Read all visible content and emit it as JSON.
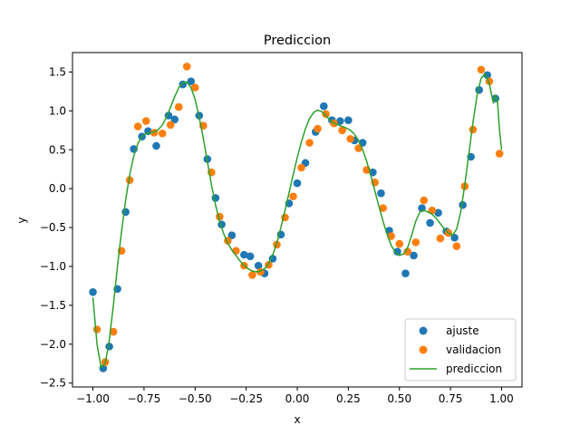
{
  "chart_data": {
    "type": "scatter",
    "title": "Prediccion",
    "xlabel": "x",
    "ylabel": "y",
    "xlim": [
      -1.1,
      1.1
    ],
    "ylim": [
      -2.55,
      1.75
    ],
    "xticks": [
      -1.0,
      -0.75,
      -0.5,
      -0.25,
      0.0,
      0.25,
      0.5,
      0.75,
      1.0
    ],
    "xtick_labels": [
      "−1.00",
      "−0.75",
      "−0.50",
      "−0.25",
      "0.00",
      "0.25",
      "0.50",
      "0.75",
      "1.00"
    ],
    "yticks": [
      -2.5,
      -2.0,
      -1.5,
      -1.0,
      -0.5,
      0.0,
      0.5,
      1.0,
      1.5
    ],
    "ytick_labels": [
      "−2.5",
      "−2.0",
      "−1.5",
      "−1.0",
      "−0.5",
      "0.0",
      "0.5",
      "1.0",
      "1.5"
    ],
    "grid": false,
    "legend_position": "lower-right",
    "series": [
      {
        "name": "ajuste",
        "kind": "scatter",
        "color": "#1f77b4",
        "x": [
          -1.0,
          -0.95,
          -0.92,
          -0.88,
          -0.84,
          -0.8,
          -0.76,
          -0.73,
          -0.69,
          -0.63,
          -0.6,
          -0.56,
          -0.52,
          -0.48,
          -0.44,
          -0.4,
          -0.37,
          -0.32,
          -0.26,
          -0.23,
          -0.19,
          -0.16,
          -0.12,
          -0.08,
          -0.04,
          0.0,
          0.04,
          0.09,
          0.13,
          0.17,
          0.21,
          0.25,
          0.28,
          0.32,
          0.37,
          0.41,
          0.45,
          0.49,
          0.53,
          0.57,
          0.61,
          0.65,
          0.69,
          0.73,
          0.77,
          0.81,
          0.85,
          0.89,
          0.93,
          0.97
        ],
        "y": [
          -1.33,
          -2.31,
          -2.03,
          -1.29,
          -0.3,
          0.51,
          0.67,
          0.74,
          0.55,
          0.94,
          0.89,
          1.34,
          1.38,
          0.94,
          0.38,
          -0.12,
          -0.46,
          -0.6,
          -0.85,
          -0.87,
          -0.99,
          -1.09,
          -0.9,
          -0.59,
          -0.19,
          0.07,
          0.33,
          0.73,
          1.06,
          0.88,
          0.87,
          0.88,
          0.62,
          0.59,
          0.21,
          -0.06,
          -0.54,
          -0.81,
          -1.09,
          -0.86,
          -0.25,
          -0.44,
          -0.31,
          -0.55,
          -0.63,
          -0.21,
          0.41,
          1.27,
          1.46,
          1.16
        ]
      },
      {
        "name": "validacion",
        "kind": "scatter",
        "color": "#ff7f0e",
        "x": [
          -0.98,
          -0.94,
          -0.9,
          -0.86,
          -0.82,
          -0.78,
          -0.74,
          -0.7,
          -0.66,
          -0.62,
          -0.58,
          -0.54,
          -0.5,
          -0.46,
          -0.42,
          -0.38,
          -0.34,
          -0.3,
          -0.26,
          -0.22,
          -0.18,
          -0.14,
          -0.1,
          -0.06,
          -0.02,
          0.02,
          0.06,
          0.1,
          0.14,
          0.18,
          0.22,
          0.26,
          0.3,
          0.34,
          0.38,
          0.42,
          0.46,
          0.5,
          0.54,
          0.58,
          0.62,
          0.66,
          0.7,
          0.74,
          0.78,
          0.82,
          0.86,
          0.9,
          0.94,
          0.99
        ],
        "y": [
          -1.81,
          -2.23,
          -1.84,
          -0.8,
          0.11,
          0.8,
          0.87,
          0.72,
          0.71,
          0.82,
          1.05,
          1.57,
          1.3,
          0.81,
          0.21,
          -0.36,
          -0.67,
          -0.8,
          -0.99,
          -1.11,
          -1.07,
          -0.98,
          -0.72,
          -0.37,
          -0.1,
          0.27,
          0.59,
          0.77,
          0.96,
          0.84,
          0.75,
          0.64,
          0.52,
          0.24,
          0.08,
          -0.25,
          -0.61,
          -0.71,
          -0.81,
          -0.69,
          -0.15,
          -0.28,
          -0.64,
          -0.57,
          -0.74,
          0.03,
          0.76,
          1.53,
          1.38,
          0.45
        ]
      },
      {
        "name": "prediccion",
        "kind": "line",
        "color": "#2ca02c",
        "x": [
          -1.0,
          -0.98,
          -0.96,
          -0.94,
          -0.92,
          -0.9,
          -0.88,
          -0.86,
          -0.84,
          -0.82,
          -0.8,
          -0.78,
          -0.76,
          -0.74,
          -0.72,
          -0.7,
          -0.68,
          -0.66,
          -0.64,
          -0.62,
          -0.6,
          -0.58,
          -0.56,
          -0.54,
          -0.52,
          -0.5,
          -0.48,
          -0.46,
          -0.44,
          -0.42,
          -0.4,
          -0.38,
          -0.36,
          -0.34,
          -0.32,
          -0.3,
          -0.28,
          -0.26,
          -0.24,
          -0.22,
          -0.2,
          -0.18,
          -0.16,
          -0.14,
          -0.12,
          -0.1,
          -0.08,
          -0.06,
          -0.04,
          -0.02,
          0.0,
          0.02,
          0.04,
          0.06,
          0.08,
          0.1,
          0.12,
          0.14,
          0.16,
          0.18,
          0.2,
          0.22,
          0.24,
          0.26,
          0.28,
          0.3,
          0.32,
          0.34,
          0.36,
          0.38,
          0.4,
          0.42,
          0.44,
          0.46,
          0.48,
          0.5,
          0.52,
          0.54,
          0.56,
          0.58,
          0.6,
          0.62,
          0.64,
          0.66,
          0.68,
          0.7,
          0.72,
          0.74,
          0.76,
          0.78,
          0.8,
          0.82,
          0.84,
          0.86,
          0.88,
          0.9,
          0.92,
          0.94,
          0.96,
          0.97,
          0.98,
          0.99,
          1.0
        ],
        "y": [
          -1.4,
          -2.0,
          -2.3,
          -2.25,
          -1.95,
          -1.5,
          -1.0,
          -0.55,
          -0.15,
          0.18,
          0.42,
          0.58,
          0.67,
          0.71,
          0.72,
          0.73,
          0.76,
          0.82,
          0.92,
          1.05,
          1.18,
          1.3,
          1.36,
          1.37,
          1.3,
          1.15,
          0.92,
          0.65,
          0.35,
          0.05,
          -0.21,
          -0.42,
          -0.58,
          -0.7,
          -0.79,
          -0.86,
          -0.93,
          -0.99,
          -1.03,
          -1.06,
          -1.07,
          -1.06,
          -1.03,
          -0.96,
          -0.85,
          -0.7,
          -0.5,
          -0.28,
          -0.05,
          0.18,
          0.4,
          0.6,
          0.77,
          0.9,
          0.98,
          1.01,
          0.99,
          0.94,
          0.88,
          0.84,
          0.82,
          0.8,
          0.78,
          0.75,
          0.7,
          0.62,
          0.5,
          0.35,
          0.17,
          -0.03,
          -0.23,
          -0.42,
          -0.59,
          -0.73,
          -0.82,
          -0.86,
          -0.84,
          -0.76,
          -0.6,
          -0.42,
          -0.3,
          -0.28,
          -0.3,
          -0.33,
          -0.38,
          -0.45,
          -0.52,
          -0.57,
          -0.6,
          -0.52,
          -0.3,
          0.05,
          0.45,
          0.85,
          1.2,
          1.42,
          1.48,
          1.35,
          1.1,
          1.2,
          1.12,
          0.75,
          0.5
        ]
      }
    ]
  }
}
